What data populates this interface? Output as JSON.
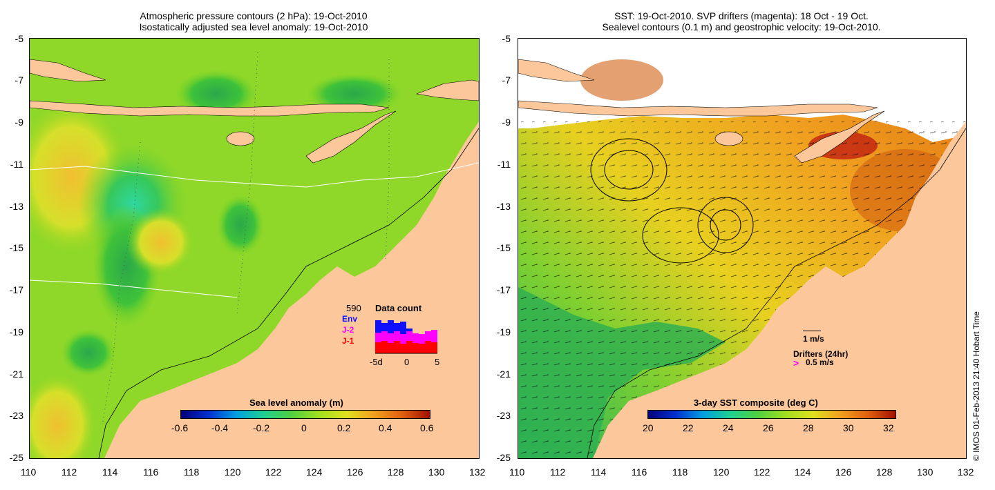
{
  "left": {
    "title_line1": "Atmospheric pressure contours (2 hPa): 19-Oct-2010",
    "title_line2": "Isostatically adjusted sea level anomaly: 19-Oct-2010",
    "colorbar_label": "Sea level anomaly (m)",
    "colorbar_ticks": [
      "-0.6",
      "-0.4",
      "-0.2",
      "0",
      "0.2",
      "0.4",
      "0.6"
    ],
    "data_count": {
      "total": "590",
      "title": "Data count",
      "legend": [
        {
          "label": "Env",
          "color": "#1010ff"
        },
        {
          "label": "J-2",
          "color": "#ff00ff"
        },
        {
          "label": "J-1",
          "color": "#ff0000"
        }
      ],
      "axis_labels": [
        "-5d",
        "0",
        "5"
      ]
    }
  },
  "right": {
    "title_line1": "SST: 19-Oct-2010. SVP drifters (magenta): 18 Oct - 19 Oct.",
    "title_line2": "Sealevel contours (0.1 m) and geostrophic velocity: 19-Oct-2010.",
    "colorbar_label": "3-day SST composite (deg C)",
    "colorbar_ticks": [
      "20",
      "22",
      "24",
      "26",
      "28",
      "30",
      "32"
    ],
    "velocity_scale": "1 m/s",
    "drifters_label": "Drifters (24hr)",
    "drifter_scale": "0.5 m/s",
    "drifter_symbol": ">"
  },
  "axes": {
    "lat_ticks": [
      "-5",
      "-7",
      "-9",
      "-11",
      "-13",
      "-15",
      "-17",
      "-19",
      "-21",
      "-23",
      "-25"
    ],
    "lon_ticks": [
      "110",
      "112",
      "114",
      "116",
      "118",
      "120",
      "122",
      "124",
      "126",
      "128",
      "130",
      "132"
    ]
  },
  "credit": "© IMOS 01-Feb-2013 21:40 Hobart Time",
  "colors": {
    "land": "#fcc79a",
    "sla_bg": "#7ed321",
    "sst_bg": "#f0b020"
  }
}
